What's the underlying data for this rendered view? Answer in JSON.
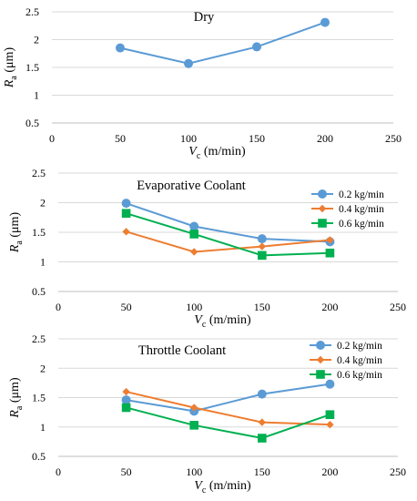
{
  "chart_data": [
    {
      "type": "line",
      "title": "Dry",
      "xlabel_main": "V",
      "xlabel_sub": "c",
      "xlabel_unit": " (m/min)",
      "ylabel_main": "R",
      "ylabel_sub": "a",
      "ylabel_unit": " (μm)",
      "xlim": [
        0,
        250
      ],
      "ylim": [
        0.5,
        2.5
      ],
      "xticks": [
        0,
        50,
        100,
        150,
        200,
        250
      ],
      "yticks": [
        0.5,
        1,
        1.5,
        2,
        2.5
      ],
      "grid": "horizontal",
      "legend": "none",
      "series": [
        {
          "color": "#5B9BD5",
          "marker": "circle",
          "x": [
            50,
            100,
            150,
            200
          ],
          "y": [
            1.85,
            1.57,
            1.87,
            2.31
          ]
        }
      ]
    },
    {
      "type": "line",
      "title": "Evaporative Coolant",
      "xlabel_main": "V",
      "xlabel_sub": "c",
      "xlabel_unit": " (m/min)",
      "ylabel_main": "R",
      "ylabel_sub": "a",
      "ylabel_unit": " (μm)",
      "xlim": [
        0,
        250
      ],
      "ylim": [
        0.5,
        2.5
      ],
      "xticks": [
        0,
        50,
        100,
        150,
        200,
        250
      ],
      "yticks": [
        0.5,
        1,
        1.5,
        2,
        2.5
      ],
      "grid": "horizontal",
      "legend": "top-right",
      "series": [
        {
          "name": "0.2 kg/min",
          "color": "#5B9BD5",
          "marker": "circle",
          "x": [
            50,
            100,
            150,
            200
          ],
          "y": [
            1.99,
            1.6,
            1.39,
            1.34
          ]
        },
        {
          "name": "0.4 kg/min",
          "color": "#ED7D31",
          "marker": "diamond",
          "x": [
            50,
            100,
            150,
            200
          ],
          "y": [
            1.51,
            1.17,
            1.26,
            1.37
          ]
        },
        {
          "name": "0.6 kg/min",
          "color": "#00B050",
          "marker": "square",
          "x": [
            50,
            100,
            150,
            200
          ],
          "y": [
            1.82,
            1.47,
            1.11,
            1.15
          ]
        }
      ]
    },
    {
      "type": "line",
      "title": "Throttle Coolant",
      "xlabel_main": "V",
      "xlabel_sub": "c",
      "xlabel_unit": " (m/min)",
      "ylabel_main": "R",
      "ylabel_sub": "a",
      "ylabel_unit": " (μm)",
      "xlim": [
        0,
        250
      ],
      "ylim": [
        0.5,
        2.5
      ],
      "xticks": [
        0,
        50,
        100,
        150,
        200,
        250
      ],
      "yticks": [
        0.5,
        1,
        1.5,
        2,
        2.5
      ],
      "grid": "horizontal",
      "legend": "top-right",
      "series": [
        {
          "name": "0.2 kg/min",
          "color": "#5B9BD5",
          "marker": "circle",
          "x": [
            50,
            100,
            150,
            200
          ],
          "y": [
            1.46,
            1.27,
            1.56,
            1.73
          ]
        },
        {
          "name": "0.4 kg/min",
          "color": "#ED7D31",
          "marker": "diamond",
          "x": [
            50,
            100,
            150,
            200
          ],
          "y": [
            1.6,
            1.33,
            1.08,
            1.04
          ]
        },
        {
          "name": "0.6 kg/min",
          "color": "#00B050",
          "marker": "square",
          "x": [
            50,
            100,
            150,
            200
          ],
          "y": [
            1.33,
            1.03,
            0.81,
            1.21
          ]
        }
      ]
    }
  ]
}
